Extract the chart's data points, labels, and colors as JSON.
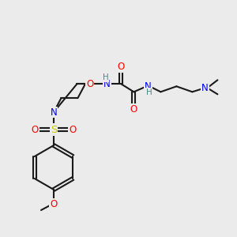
{
  "background_color": "#ebebeb",
  "bond_color": "#1a1a1a",
  "atom_colors": {
    "O": "#ff0000",
    "N": "#0000ee",
    "S": "#cccc00",
    "H": "#4a8a8a",
    "C": "#1a1a1a"
  },
  "figsize": [
    3.0,
    3.0
  ],
  "dpi": 100
}
